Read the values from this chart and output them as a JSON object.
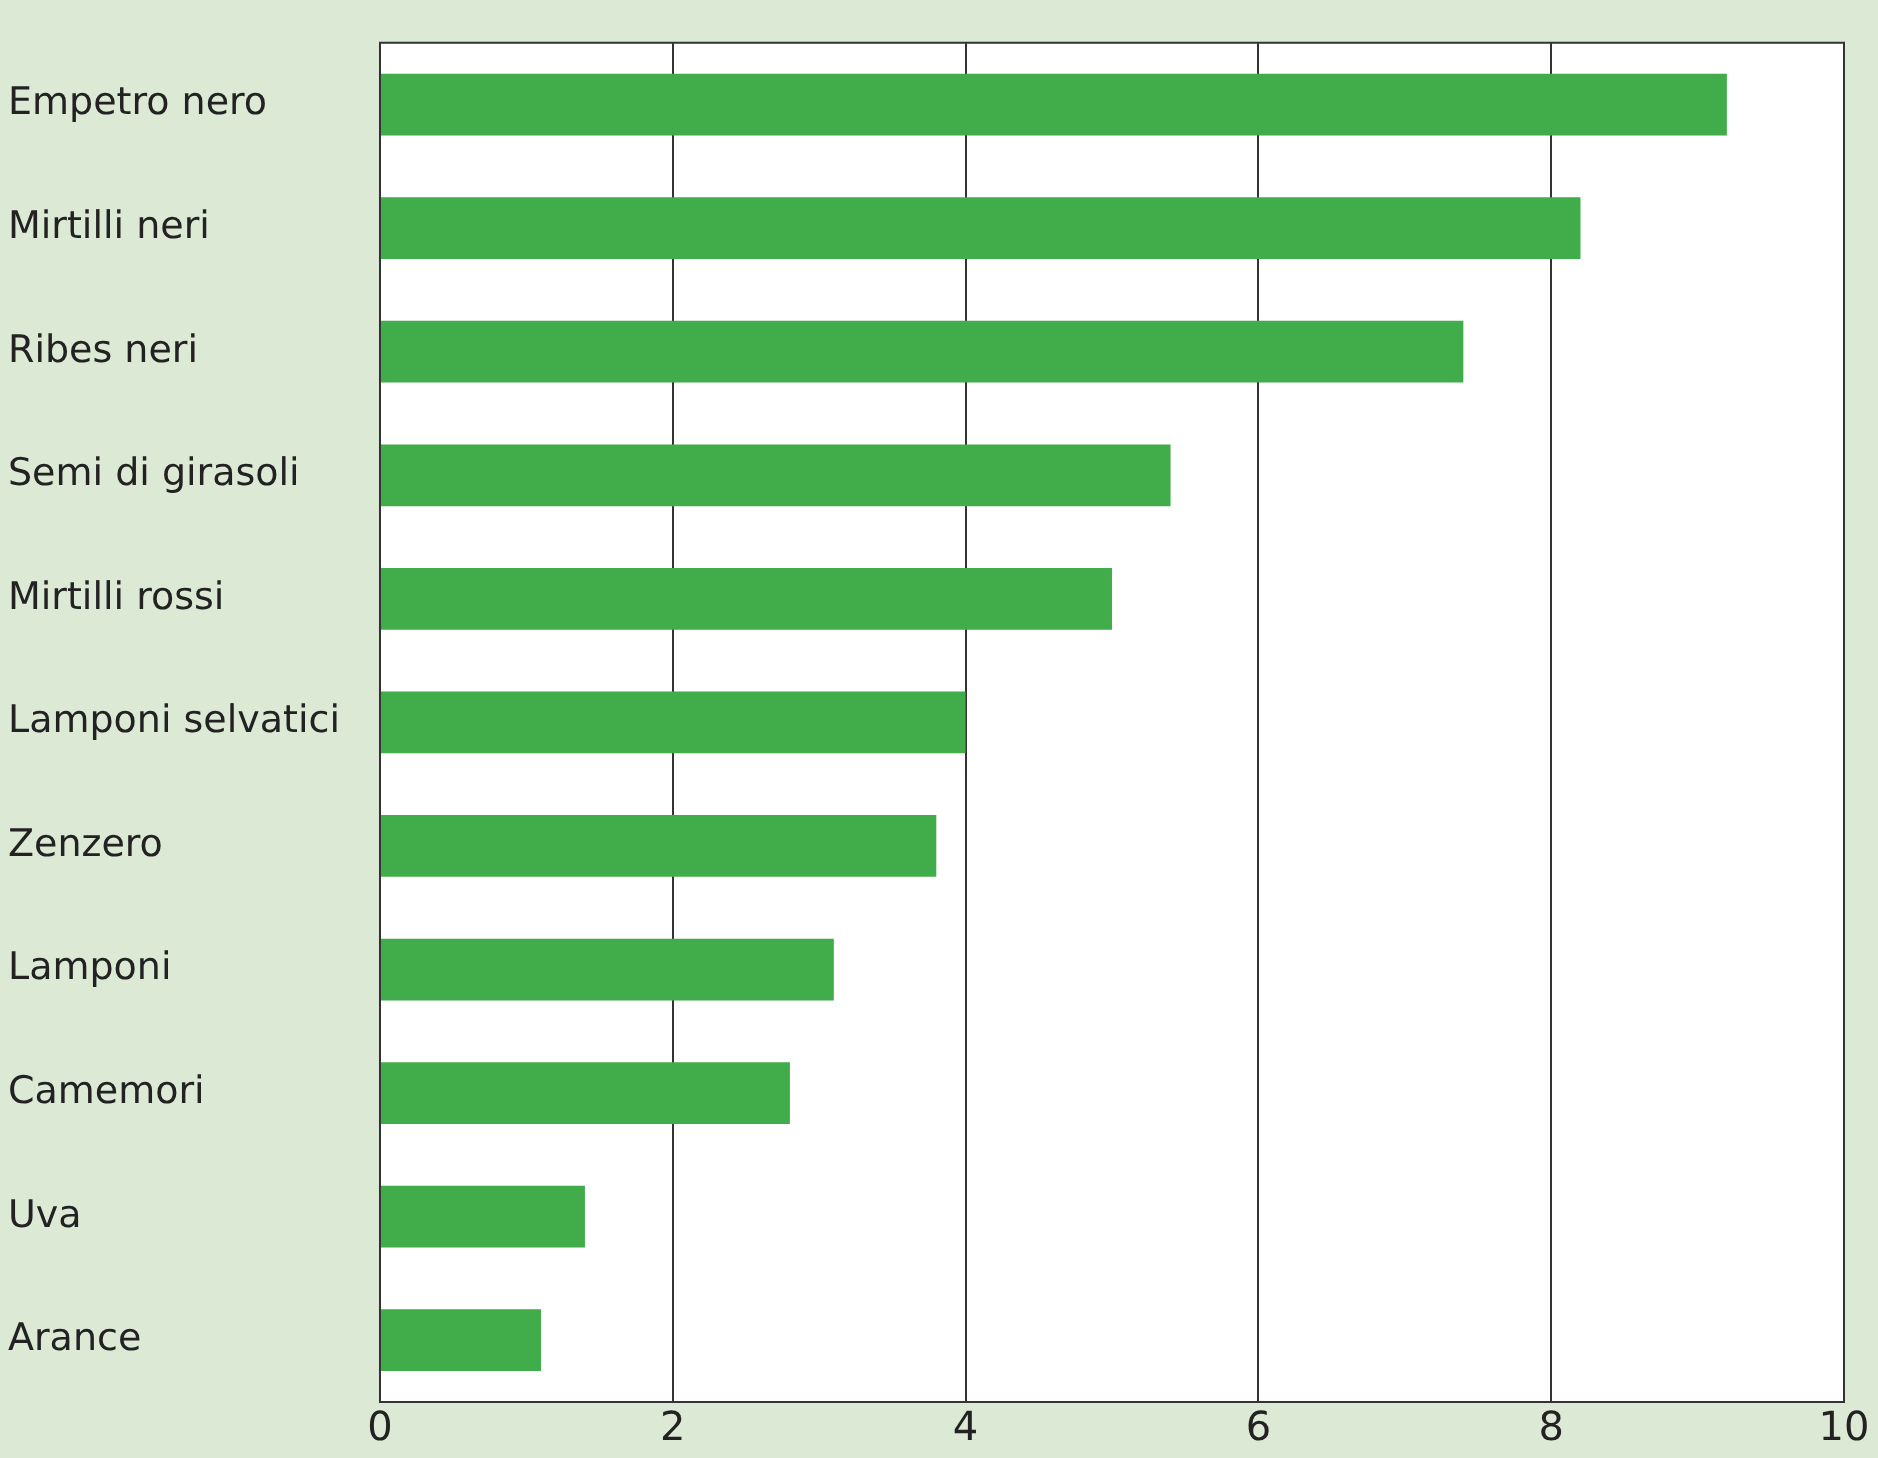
{
  "chart_data": {
    "type": "bar",
    "orientation": "horizontal",
    "categories": [
      "Empetro nero",
      "Mirtilli neri",
      "Ribes neri",
      "Semi di girasoli",
      "Mirtilli rossi",
      "Lamponi selvatici",
      "Zenzero",
      "Lamponi",
      "Camemori",
      "Uva",
      "Arance"
    ],
    "values": [
      9.2,
      8.2,
      7.4,
      5.4,
      5.0,
      4.0,
      3.8,
      3.1,
      2.8,
      1.4,
      1.1
    ],
    "color": "#41ac4a",
    "xlim": [
      0,
      10
    ],
    "xticks": [
      0,
      2,
      4,
      6,
      8,
      10
    ],
    "grid": "x",
    "legend": false
  }
}
